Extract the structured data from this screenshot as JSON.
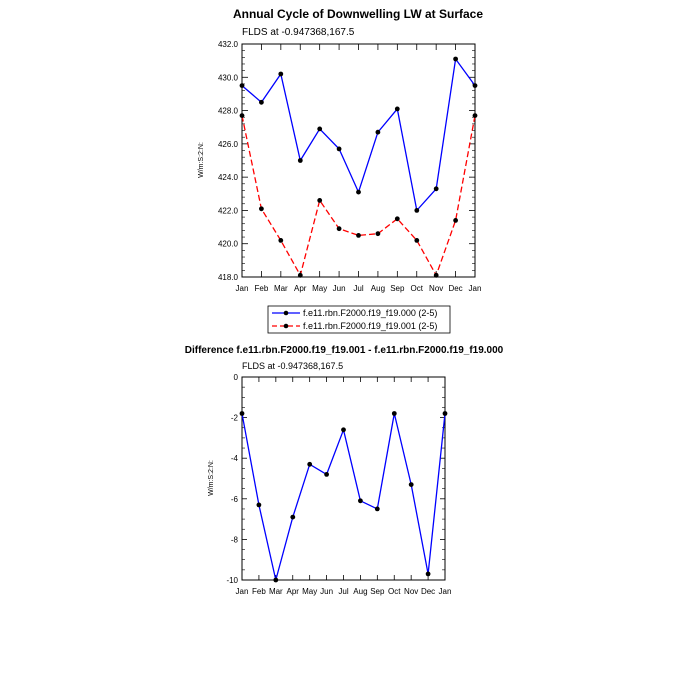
{
  "chart_data": [
    {
      "type": "line",
      "title": "Annual Cycle of Downwelling LW at Surface",
      "subtitle": "FLDS at -0.947368,167.5",
      "ylabel": "W/m:S:2:N:",
      "categories": [
        "Jan",
        "Feb",
        "Mar",
        "Apr",
        "May",
        "Jun",
        "Jul",
        "Aug",
        "Sep",
        "Oct",
        "Nov",
        "Dec",
        "Jan"
      ],
      "ylim": [
        418.0,
        432.0
      ],
      "yticks": [
        "418.0",
        "420.0",
        "422.0",
        "424.0",
        "426.0",
        "428.0",
        "430.0",
        "432.0"
      ],
      "series": [
        {
          "name": "f.e11.rbn.F2000.f19_f19.000 (2-5)",
          "color": "#0000ff",
          "dash": "solid",
          "values": [
            429.5,
            428.5,
            430.2,
            425.0,
            426.9,
            425.7,
            423.1,
            426.7,
            428.1,
            422.0,
            423.3,
            431.1,
            429.5
          ]
        },
        {
          "name": "f.e11.rbn.F2000.f19_f19.001 (2-5)",
          "color": "#ff0000",
          "dash": "dashed",
          "values": [
            427.7,
            422.1,
            420.2,
            418.1,
            422.6,
            420.9,
            420.5,
            420.6,
            421.5,
            420.2,
            418.1,
            421.4,
            427.7
          ]
        }
      ]
    },
    {
      "type": "line",
      "title": "Difference f.e11.rbn.F2000.f19_f19.001 - f.e11.rbn.F2000.f19_f19.000",
      "subtitle": "FLDS at -0.947368,167.5",
      "ylabel": "W/m:S:2:N:",
      "categories": [
        "Jan",
        "Feb",
        "Mar",
        "Apr",
        "May",
        "Jun",
        "Jul",
        "Aug",
        "Sep",
        "Oct",
        "Nov",
        "Dec",
        "Jan"
      ],
      "ylim": [
        -10,
        0
      ],
      "yticks": [
        "-10",
        "-8",
        "-6",
        "-4",
        "-2",
        "0"
      ],
      "series": [
        {
          "name": "",
          "color": "#0000ff",
          "dash": "solid",
          "values": [
            -1.8,
            -6.3,
            -10.0,
            -6.9,
            -4.3,
            -4.8,
            -2.6,
            -6.1,
            -6.5,
            -1.8,
            -5.3,
            -9.7,
            -1.8
          ]
        }
      ]
    }
  ]
}
